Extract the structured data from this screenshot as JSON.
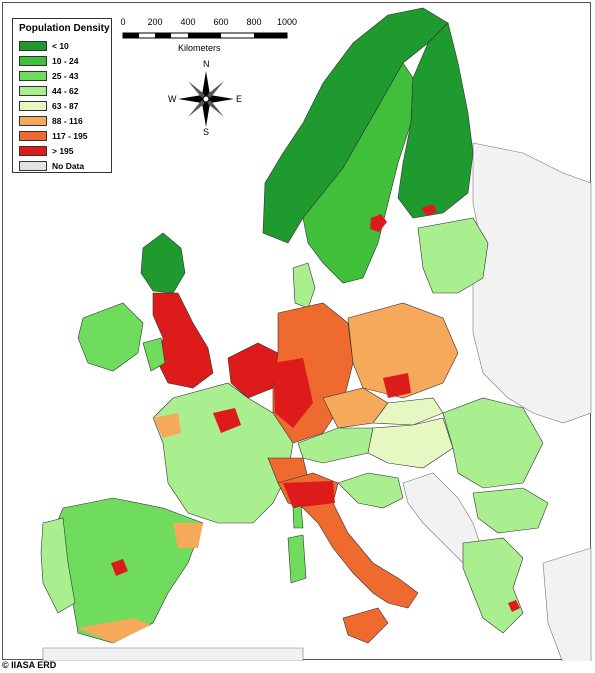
{
  "legend": {
    "title": "Population Density",
    "items": [
      {
        "label": "< 10",
        "color": "#1e9a2e"
      },
      {
        "label": "10 - 24",
        "color": "#3fbf3a"
      },
      {
        "label": "25 - 43",
        "color": "#6fdc5e"
      },
      {
        "label": "44 - 62",
        "color": "#a9ee8f"
      },
      {
        "label": "63 - 87",
        "color": "#e6f7c2"
      },
      {
        "label": "88 - 116",
        "color": "#f6a95b"
      },
      {
        "label": "117 - 195",
        "color": "#ee6a2f"
      },
      {
        "label": "> 195",
        "color": "#dd1b1b"
      },
      {
        "label": "No Data",
        "color": "#e2e2e2"
      }
    ]
  },
  "scale": {
    "ticks": [
      "0",
      "200",
      "400",
      "600",
      "800",
      "1000"
    ],
    "unit": "Kilometers"
  },
  "compass": {
    "n": "N",
    "s": "S",
    "e": "E",
    "w": "W"
  },
  "credit": "© IIASA ERD"
}
